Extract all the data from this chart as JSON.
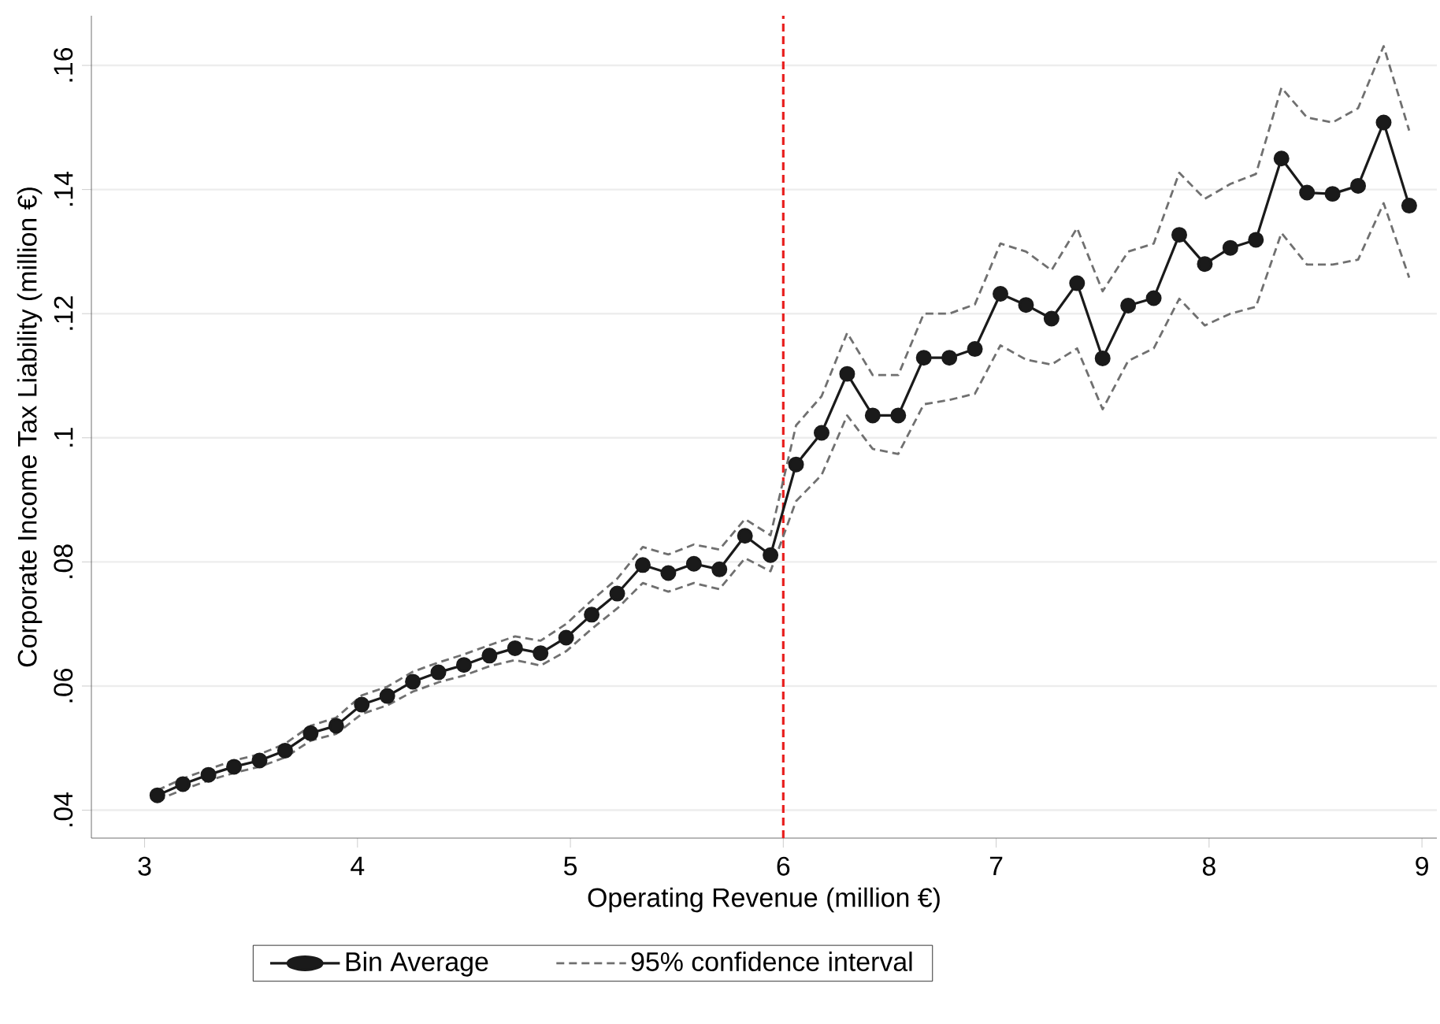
{
  "chart_data": {
    "type": "line",
    "xlabel": "Operating Revenue (million €)",
    "ylabel": "Corporate Income Tax Liability (million €)",
    "x": [
      3.06,
      3.18,
      3.3,
      3.42,
      3.54,
      3.66,
      3.78,
      3.9,
      4.02,
      4.14,
      4.26,
      4.38,
      4.5,
      4.62,
      4.74,
      4.86,
      4.98,
      5.1,
      5.22,
      5.34,
      5.46,
      5.58,
      5.7,
      5.82,
      5.94,
      6.06,
      6.18,
      6.3,
      6.42,
      6.54,
      6.66,
      6.78,
      6.9,
      7.02,
      7.14,
      7.26,
      7.38,
      7.5,
      7.62,
      7.74,
      7.86,
      7.98,
      8.1,
      8.22,
      8.34,
      8.46,
      8.58,
      8.7,
      8.82,
      8.94
    ],
    "series": [
      {
        "name": "Bin Average",
        "color": "#1a1a1a",
        "marker": "circle",
        "line_style": "solid",
        "values": [
          0.0424,
          0.0442,
          0.0457,
          0.047,
          0.048,
          0.0496,
          0.0524,
          0.0536,
          0.057,
          0.0584,
          0.0607,
          0.0622,
          0.0634,
          0.0649,
          0.0661,
          0.0653,
          0.0678,
          0.0715,
          0.0749,
          0.0795,
          0.0782,
          0.0797,
          0.0788,
          0.0842,
          0.0811,
          0.0957,
          0.1008,
          0.1103,
          0.1036,
          0.1036,
          0.1129,
          0.1129,
          0.1143,
          0.1232,
          0.1214,
          0.1192,
          0.1249,
          0.1128,
          0.1213,
          0.1225,
          0.1327,
          0.128,
          0.1306,
          0.1319,
          0.145,
          0.1395,
          0.1393,
          0.1406,
          0.1508,
          0.1374
        ]
      },
      {
        "name": "95% confidence interval",
        "color": "#707070",
        "marker": "none",
        "line_style": "dashed",
        "values": [
          0.0432,
          0.0451,
          0.0466,
          0.048,
          0.049,
          0.0507,
          0.0536,
          0.0549,
          0.0585,
          0.0599,
          0.0623,
          0.0638,
          0.0651,
          0.0666,
          0.068,
          0.0673,
          0.07,
          0.0738,
          0.0773,
          0.0824,
          0.0812,
          0.0828,
          0.082,
          0.0869,
          0.0843,
          0.102,
          0.1067,
          0.1169,
          0.1101,
          0.1101,
          0.12,
          0.12,
          0.1215,
          0.1313,
          0.13,
          0.127,
          0.1338,
          0.1236,
          0.13,
          0.1313,
          0.1427,
          0.1385,
          0.1409,
          0.1425,
          0.1564,
          0.1516,
          0.1508,
          0.1531,
          0.1631,
          0.1495
        ]
      },
      {
        "color": "#707070",
        "marker": "none",
        "line_style": "dashed",
        "values": [
          0.0416,
          0.0433,
          0.0448,
          0.046,
          0.047,
          0.0485,
          0.0512,
          0.0523,
          0.0555,
          0.0569,
          0.0591,
          0.0606,
          0.0617,
          0.0632,
          0.0642,
          0.0633,
          0.0656,
          0.0692,
          0.0725,
          0.0766,
          0.0752,
          0.0766,
          0.0756,
          0.0806,
          0.0785,
          0.0898,
          0.094,
          0.1036,
          0.0982,
          0.0974,
          0.1054,
          0.1061,
          0.1071,
          0.1149,
          0.1126,
          0.1118,
          0.1144,
          0.1046,
          0.1124,
          0.1144,
          0.1224,
          0.1181,
          0.12,
          0.1211,
          0.133,
          0.1279,
          0.1279,
          0.1287,
          0.1378,
          0.1258
        ]
      }
    ],
    "xlim": [
      2.75,
      9.07
    ],
    "ylim": [
      0.0355,
      0.168
    ],
    "xticks": [
      3,
      4,
      5,
      6,
      7,
      8,
      9
    ],
    "yticks": [
      {
        "value": 0.04,
        "label": ".04"
      },
      {
        "value": 0.06,
        "label": ".06"
      },
      {
        "value": 0.08,
        "label": ".08"
      },
      {
        "value": 0.1,
        "label": ".1"
      },
      {
        "value": 0.12,
        "label": ".12"
      },
      {
        "value": 0.14,
        "label": ".14"
      },
      {
        "value": 0.16,
        "label": ".16"
      }
    ],
    "ref_lines": [
      {
        "axis": "x",
        "value": 6,
        "color": "#e8201f",
        "line_style": "dashed"
      }
    ],
    "grid": "y",
    "legend": "bottom"
  }
}
